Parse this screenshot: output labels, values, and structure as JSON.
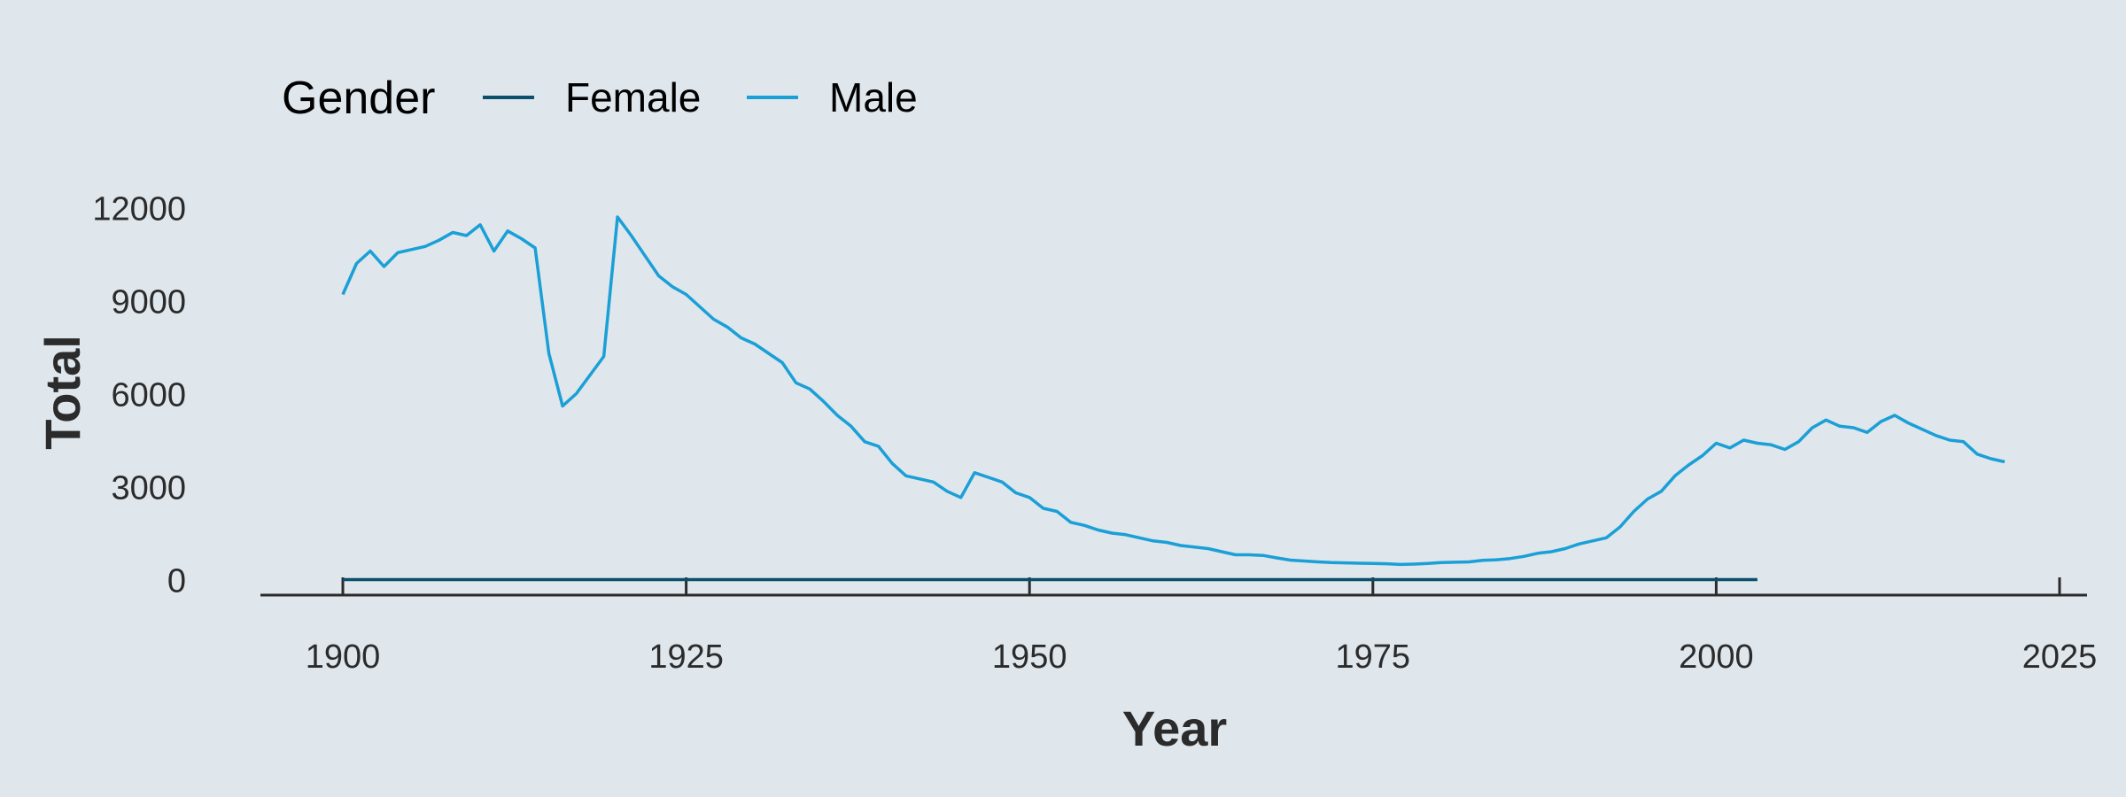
{
  "chart_data": {
    "type": "line",
    "xlabel": "Year",
    "ylabel": "Total",
    "xlim": [
      1894,
      2027
    ],
    "ylim": [
      -500,
      13500
    ],
    "x_ticks": [
      1900,
      1925,
      1950,
      1975,
      2000,
      2025
    ],
    "y_ticks": [
      0,
      3000,
      6000,
      9000,
      12000
    ],
    "grid": false,
    "legend": {
      "title": "Gender",
      "position": "top-left"
    },
    "series": [
      {
        "name": "Female",
        "color": "#0b4f6c",
        "points": [
          [
            1900,
            0
          ],
          [
            2003,
            0
          ]
        ]
      },
      {
        "name": "Male",
        "color": "#1a9fd6",
        "points": [
          [
            1900,
            9200
          ],
          [
            1901,
            10200
          ],
          [
            1902,
            10600
          ],
          [
            1903,
            10100
          ],
          [
            1904,
            10550
          ],
          [
            1905,
            10650
          ],
          [
            1906,
            10750
          ],
          [
            1907,
            10950
          ],
          [
            1908,
            11200
          ],
          [
            1909,
            11100
          ],
          [
            1910,
            11450
          ],
          [
            1911,
            10600
          ],
          [
            1912,
            11250
          ],
          [
            1913,
            11000
          ],
          [
            1914,
            10700
          ],
          [
            1915,
            7300
          ],
          [
            1916,
            5600
          ],
          [
            1917,
            6000
          ],
          [
            1918,
            6600
          ],
          [
            1919,
            7200
          ],
          [
            1920,
            11700
          ],
          [
            1921,
            11100
          ],
          [
            1922,
            10450
          ],
          [
            1923,
            9800
          ],
          [
            1924,
            9450
          ],
          [
            1925,
            9200
          ],
          [
            1926,
            8800
          ],
          [
            1927,
            8400
          ],
          [
            1928,
            8150
          ],
          [
            1929,
            7800
          ],
          [
            1930,
            7600
          ],
          [
            1931,
            7300
          ],
          [
            1932,
            7000
          ],
          [
            1933,
            6350
          ],
          [
            1934,
            6150
          ],
          [
            1935,
            5750
          ],
          [
            1936,
            5300
          ],
          [
            1937,
            4950
          ],
          [
            1938,
            4450
          ],
          [
            1939,
            4300
          ],
          [
            1940,
            3750
          ],
          [
            1941,
            3350
          ],
          [
            1942,
            3250
          ],
          [
            1943,
            3150
          ],
          [
            1944,
            2850
          ],
          [
            1945,
            2650
          ],
          [
            1946,
            3450
          ],
          [
            1947,
            3300
          ],
          [
            1948,
            3150
          ],
          [
            1949,
            2800
          ],
          [
            1950,
            2650
          ],
          [
            1951,
            2300
          ],
          [
            1952,
            2200
          ],
          [
            1953,
            1850
          ],
          [
            1954,
            1750
          ],
          [
            1955,
            1600
          ],
          [
            1956,
            1500
          ],
          [
            1957,
            1450
          ],
          [
            1958,
            1350
          ],
          [
            1959,
            1250
          ],
          [
            1960,
            1200
          ],
          [
            1961,
            1100
          ],
          [
            1962,
            1050
          ],
          [
            1963,
            1000
          ],
          [
            1964,
            900
          ],
          [
            1965,
            800
          ],
          [
            1966,
            800
          ],
          [
            1967,
            780
          ],
          [
            1968,
            700
          ],
          [
            1969,
            630
          ],
          [
            1970,
            600
          ],
          [
            1971,
            570
          ],
          [
            1972,
            550
          ],
          [
            1973,
            540
          ],
          [
            1974,
            530
          ],
          [
            1975,
            520
          ],
          [
            1976,
            510
          ],
          [
            1977,
            490
          ],
          [
            1978,
            500
          ],
          [
            1979,
            520
          ],
          [
            1980,
            550
          ],
          [
            1981,
            560
          ],
          [
            1982,
            570
          ],
          [
            1983,
            620
          ],
          [
            1984,
            640
          ],
          [
            1985,
            680
          ],
          [
            1986,
            750
          ],
          [
            1987,
            850
          ],
          [
            1988,
            900
          ],
          [
            1989,
            1000
          ],
          [
            1990,
            1150
          ],
          [
            1991,
            1250
          ],
          [
            1992,
            1350
          ],
          [
            1993,
            1700
          ],
          [
            1994,
            2200
          ],
          [
            1995,
            2600
          ],
          [
            1996,
            2850
          ],
          [
            1997,
            3350
          ],
          [
            1998,
            3700
          ],
          [
            1999,
            4000
          ],
          [
            2000,
            4400
          ],
          [
            2001,
            4250
          ],
          [
            2002,
            4500
          ],
          [
            2003,
            4400
          ],
          [
            2004,
            4350
          ],
          [
            2005,
            4200
          ],
          [
            2006,
            4450
          ],
          [
            2007,
            4900
          ],
          [
            2008,
            5150
          ],
          [
            2009,
            4950
          ],
          [
            2010,
            4900
          ],
          [
            2011,
            4750
          ],
          [
            2012,
            5100
          ],
          [
            2013,
            5300
          ],
          [
            2014,
            5050
          ],
          [
            2015,
            4850
          ],
          [
            2016,
            4650
          ],
          [
            2017,
            4500
          ],
          [
            2018,
            4450
          ],
          [
            2019,
            4050
          ],
          [
            2020,
            3900
          ],
          [
            2021,
            3800
          ]
        ]
      }
    ]
  },
  "colors": {
    "background": "#dfe6ec",
    "axis": "#2b2b2b",
    "text": "#2b2b2b"
  }
}
